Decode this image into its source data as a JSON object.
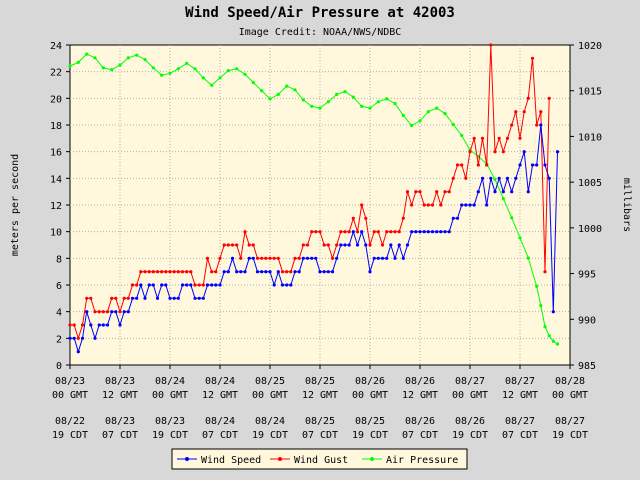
{
  "chart_data": {
    "type": "line",
    "title": "Wind Speed/Air Pressure at 42003",
    "subtitle": "Image Credit: NOAA/NWS/NDBC",
    "ylabel_left": "meters per second",
    "ylabel_right": "millibars",
    "ylim_left": [
      0,
      24
    ],
    "yticks_left": [
      "0",
      "2",
      "4",
      "6",
      "8",
      "10",
      "12",
      "14",
      "16",
      "18",
      "20",
      "22",
      "24"
    ],
    "ylim_right": [
      985,
      1020
    ],
    "yticks_right": [
      "985",
      "990",
      "995",
      "1000",
      "1005",
      "1010",
      "1015",
      "1020"
    ],
    "x_units": "hours after 08/23 00 GMT",
    "xlim": [
      0,
      120
    ],
    "grid": true,
    "legend_position": "bottom",
    "xticks_gmt": [
      {
        "date": "08/23",
        "time": "00 GMT"
      },
      {
        "date": "08/23",
        "time": "12 GMT"
      },
      {
        "date": "08/24",
        "time": "00 GMT"
      },
      {
        "date": "08/24",
        "time": "12 GMT"
      },
      {
        "date": "08/25",
        "time": "00 GMT"
      },
      {
        "date": "08/25",
        "time": "12 GMT"
      },
      {
        "date": "08/26",
        "time": "00 GMT"
      },
      {
        "date": "08/26",
        "time": "12 GMT"
      },
      {
        "date": "08/27",
        "time": "00 GMT"
      },
      {
        "date": "08/27",
        "time": "12 GMT"
      },
      {
        "date": "08/28",
        "time": "00 GMT"
      }
    ],
    "xticks_cdt": [
      {
        "date": "08/22",
        "time": "19 CDT"
      },
      {
        "date": "08/23",
        "time": "07 CDT"
      },
      {
        "date": "08/23",
        "time": "19 CDT"
      },
      {
        "date": "08/24",
        "time": "07 CDT"
      },
      {
        "date": "08/24",
        "time": "19 CDT"
      },
      {
        "date": "08/25",
        "time": "07 CDT"
      },
      {
        "date": "08/25",
        "time": "19 CDT"
      },
      {
        "date": "08/26",
        "time": "07 CDT"
      },
      {
        "date": "08/26",
        "time": "19 CDT"
      },
      {
        "date": "08/27",
        "time": "07 CDT"
      },
      {
        "date": "08/27",
        "time": "19 CDT"
      }
    ],
    "series": [
      {
        "name": "Wind Speed",
        "axis": "left",
        "color": "#0000ff",
        "points": [
          [
            0,
            2
          ],
          [
            1,
            2
          ],
          [
            2,
            1
          ],
          [
            3,
            2
          ],
          [
            4,
            4
          ],
          [
            5,
            3
          ],
          [
            6,
            2
          ],
          [
            7,
            3
          ],
          [
            8,
            3
          ],
          [
            9,
            3
          ],
          [
            10,
            4
          ],
          [
            11,
            4
          ],
          [
            12,
            3
          ],
          [
            13,
            4
          ],
          [
            14,
            4
          ],
          [
            15,
            5
          ],
          [
            16,
            5
          ],
          [
            17,
            6
          ],
          [
            18,
            5
          ],
          [
            19,
            6
          ],
          [
            20,
            6
          ],
          [
            21,
            5
          ],
          [
            22,
            6
          ],
          [
            23,
            6
          ],
          [
            24,
            5
          ],
          [
            25,
            5
          ],
          [
            26,
            5
          ],
          [
            27,
            6
          ],
          [
            28,
            6
          ],
          [
            29,
            6
          ],
          [
            30,
            5
          ],
          [
            31,
            5
          ],
          [
            32,
            5
          ],
          [
            33,
            6
          ],
          [
            34,
            6
          ],
          [
            35,
            6
          ],
          [
            36,
            6
          ],
          [
            37,
            7
          ],
          [
            38,
            7
          ],
          [
            39,
            8
          ],
          [
            40,
            7
          ],
          [
            41,
            7
          ],
          [
            42,
            7
          ],
          [
            43,
            8
          ],
          [
            44,
            8
          ],
          [
            45,
            7
          ],
          [
            46,
            7
          ],
          [
            47,
            7
          ],
          [
            48,
            7
          ],
          [
            49,
            6
          ],
          [
            50,
            7
          ],
          [
            51,
            6
          ],
          [
            52,
            6
          ],
          [
            53,
            6
          ],
          [
            54,
            7
          ],
          [
            55,
            7
          ],
          [
            56,
            8
          ],
          [
            57,
            8
          ],
          [
            58,
            8
          ],
          [
            59,
            8
          ],
          [
            60,
            7
          ],
          [
            61,
            7
          ],
          [
            62,
            7
          ],
          [
            63,
            7
          ],
          [
            64,
            8
          ],
          [
            65,
            9
          ],
          [
            66,
            9
          ],
          [
            67,
            9
          ],
          [
            68,
            10
          ],
          [
            69,
            9
          ],
          [
            70,
            10
          ],
          [
            71,
            9
          ],
          [
            72,
            7
          ],
          [
            73,
            8
          ],
          [
            74,
            8
          ],
          [
            75,
            8
          ],
          [
            76,
            8
          ],
          [
            77,
            9
          ],
          [
            78,
            8
          ],
          [
            79,
            9
          ],
          [
            80,
            8
          ],
          [
            81,
            9
          ],
          [
            82,
            10
          ],
          [
            83,
            10
          ],
          [
            84,
            10
          ],
          [
            85,
            10
          ],
          [
            86,
            10
          ],
          [
            87,
            10
          ],
          [
            88,
            10
          ],
          [
            89,
            10
          ],
          [
            90,
            10
          ],
          [
            91,
            10
          ],
          [
            92,
            11
          ],
          [
            93,
            11
          ],
          [
            94,
            12
          ],
          [
            95,
            12
          ],
          [
            96,
            12
          ],
          [
            97,
            12
          ],
          [
            98,
            13
          ],
          [
            99,
            14
          ],
          [
            100,
            12
          ],
          [
            101,
            14
          ],
          [
            102,
            13
          ],
          [
            103,
            14
          ],
          [
            104,
            13
          ],
          [
            105,
            14
          ],
          [
            106,
            13
          ],
          [
            107,
            14
          ],
          [
            108,
            15
          ],
          [
            109,
            16
          ],
          [
            110,
            13
          ],
          [
            111,
            15
          ],
          [
            112,
            15
          ],
          [
            113,
            18
          ],
          [
            114,
            15
          ],
          [
            115,
            14
          ],
          [
            116,
            4
          ],
          [
            117,
            16
          ]
        ]
      },
      {
        "name": "Wind Gust",
        "axis": "left",
        "color": "#ff0000",
        "points": [
          [
            0,
            3
          ],
          [
            1,
            3
          ],
          [
            2,
            2
          ],
          [
            3,
            3
          ],
          [
            4,
            5
          ],
          [
            5,
            5
          ],
          [
            6,
            4
          ],
          [
            7,
            4
          ],
          [
            8,
            4
          ],
          [
            9,
            4
          ],
          [
            10,
            5
          ],
          [
            11,
            5
          ],
          [
            12,
            4
          ],
          [
            13,
            5
          ],
          [
            14,
            5
          ],
          [
            15,
            6
          ],
          [
            16,
            6
          ],
          [
            17,
            7
          ],
          [
            18,
            7
          ],
          [
            19,
            7
          ],
          [
            20,
            7
          ],
          [
            21,
            7
          ],
          [
            22,
            7
          ],
          [
            23,
            7
          ],
          [
            24,
            7
          ],
          [
            25,
            7
          ],
          [
            26,
            7
          ],
          [
            27,
            7
          ],
          [
            28,
            7
          ],
          [
            29,
            7
          ],
          [
            30,
            6
          ],
          [
            31,
            6
          ],
          [
            32,
            6
          ],
          [
            33,
            8
          ],
          [
            34,
            7
          ],
          [
            35,
            7
          ],
          [
            36,
            8
          ],
          [
            37,
            9
          ],
          [
            38,
            9
          ],
          [
            39,
            9
          ],
          [
            40,
            9
          ],
          [
            41,
            8
          ],
          [
            42,
            10
          ],
          [
            43,
            9
          ],
          [
            44,
            9
          ],
          [
            45,
            8
          ],
          [
            46,
            8
          ],
          [
            47,
            8
          ],
          [
            48,
            8
          ],
          [
            49,
            8
          ],
          [
            50,
            8
          ],
          [
            51,
            7
          ],
          [
            52,
            7
          ],
          [
            53,
            7
          ],
          [
            54,
            8
          ],
          [
            55,
            8
          ],
          [
            56,
            9
          ],
          [
            57,
            9
          ],
          [
            58,
            10
          ],
          [
            59,
            10
          ],
          [
            60,
            10
          ],
          [
            61,
            9
          ],
          [
            62,
            9
          ],
          [
            63,
            8
          ],
          [
            64,
            9
          ],
          [
            65,
            10
          ],
          [
            66,
            10
          ],
          [
            67,
            10
          ],
          [
            68,
            11
          ],
          [
            69,
            10
          ],
          [
            70,
            12
          ],
          [
            71,
            11
          ],
          [
            72,
            9
          ],
          [
            73,
            10
          ],
          [
            74,
            10
          ],
          [
            75,
            9
          ],
          [
            76,
            10
          ],
          [
            77,
            10
          ],
          [
            78,
            10
          ],
          [
            79,
            10
          ],
          [
            80,
            11
          ],
          [
            81,
            13
          ],
          [
            82,
            12
          ],
          [
            83,
            13
          ],
          [
            84,
            13
          ],
          [
            85,
            12
          ],
          [
            86,
            12
          ],
          [
            87,
            12
          ],
          [
            88,
            13
          ],
          [
            89,
            12
          ],
          [
            90,
            13
          ],
          [
            91,
            13
          ],
          [
            92,
            14
          ],
          [
            93,
            15
          ],
          [
            94,
            15
          ],
          [
            95,
            14
          ],
          [
            96,
            16
          ],
          [
            97,
            17
          ],
          [
            98,
            15
          ],
          [
            99,
            17
          ],
          [
            100,
            15
          ],
          [
            101,
            24
          ],
          [
            102,
            16
          ],
          [
            103,
            17
          ],
          [
            104,
            16
          ],
          [
            105,
            17
          ],
          [
            106,
            18
          ],
          [
            107,
            19
          ],
          [
            108,
            17
          ],
          [
            109,
            19
          ],
          [
            110,
            20
          ],
          [
            111,
            23
          ],
          [
            112,
            18
          ],
          [
            113,
            19
          ],
          [
            114,
            7
          ],
          [
            115,
            20
          ]
        ]
      },
      {
        "name": "Air Pressure",
        "axis": "right",
        "color": "#00ff00",
        "points": [
          [
            0,
            1017.7
          ],
          [
            2,
            1018.1
          ],
          [
            4,
            1019.0
          ],
          [
            6,
            1018.6
          ],
          [
            8,
            1017.5
          ],
          [
            10,
            1017.3
          ],
          [
            12,
            1017.8
          ],
          [
            14,
            1018.6
          ],
          [
            16,
            1018.9
          ],
          [
            18,
            1018.4
          ],
          [
            20,
            1017.5
          ],
          [
            22,
            1016.7
          ],
          [
            24,
            1016.9
          ],
          [
            26,
            1017.4
          ],
          [
            28,
            1018.0
          ],
          [
            30,
            1017.4
          ],
          [
            32,
            1016.4
          ],
          [
            34,
            1015.6
          ],
          [
            36,
            1016.4
          ],
          [
            38,
            1017.2
          ],
          [
            40,
            1017.4
          ],
          [
            42,
            1016.8
          ],
          [
            44,
            1015.9
          ],
          [
            46,
            1015.0
          ],
          [
            48,
            1014.1
          ],
          [
            50,
            1014.6
          ],
          [
            52,
            1015.5
          ],
          [
            54,
            1015.1
          ],
          [
            56,
            1014.0
          ],
          [
            58,
            1013.3
          ],
          [
            60,
            1013.1
          ],
          [
            62,
            1013.8
          ],
          [
            64,
            1014.6
          ],
          [
            66,
            1014.9
          ],
          [
            68,
            1014.3
          ],
          [
            70,
            1013.3
          ],
          [
            72,
            1013.1
          ],
          [
            74,
            1013.8
          ],
          [
            76,
            1014.1
          ],
          [
            78,
            1013.6
          ],
          [
            80,
            1012.3
          ],
          [
            82,
            1011.2
          ],
          [
            84,
            1011.7
          ],
          [
            86,
            1012.7
          ],
          [
            88,
            1013.1
          ],
          [
            90,
            1012.5
          ],
          [
            92,
            1011.3
          ],
          [
            94,
            1010.1
          ],
          [
            96,
            1008.5
          ],
          [
            98,
            1007.8
          ],
          [
            100,
            1007.0
          ],
          [
            102,
            1005.3
          ],
          [
            104,
            1003.2
          ],
          [
            106,
            1001.1
          ],
          [
            108,
            998.9
          ],
          [
            110,
            996.7
          ],
          [
            112,
            993.6
          ],
          [
            113,
            991.5
          ],
          [
            114,
            989.2
          ],
          [
            115,
            988.2
          ],
          [
            116,
            987.6
          ],
          [
            117,
            987.3
          ]
        ]
      }
    ]
  }
}
